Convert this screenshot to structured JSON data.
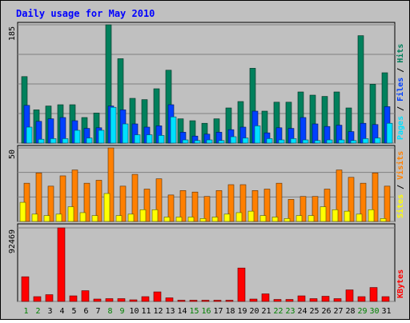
{
  "chart_data": [
    {
      "type": "bar",
      "title": "Daily usage for May 2010",
      "y_max_label": "185",
      "side_label": [
        "Pages",
        "Files",
        "Hits"
      ],
      "categories": [
        "1",
        "2",
        "3",
        "4",
        "5",
        "6",
        "7",
        "8",
        "9",
        "10",
        "11",
        "12",
        "13",
        "14",
        "15",
        "16",
        "17",
        "18",
        "19",
        "20",
        "21",
        "22",
        "23",
        "24",
        "25",
        "26",
        "27",
        "28",
        "29",
        "30",
        "31"
      ],
      "weekend_days": [
        "1",
        "2",
        "8",
        "9",
        "15",
        "16",
        "22",
        "23",
        "29",
        "30"
      ],
      "ylim": [
        0,
        185
      ],
      "series": [
        {
          "name": "Hits",
          "color": "#00805c",
          "values": [
            104,
            52,
            58,
            60,
            60,
            40,
            47,
            185,
            132,
            70,
            68,
            85,
            114,
            38,
            35,
            31,
            38,
            55,
            65,
            117,
            50,
            64,
            64,
            80,
            75,
            73,
            80,
            55,
            168,
            92,
            110
          ]
        },
        {
          "name": "Files",
          "color": "#0040ff",
          "values": [
            59,
            34,
            38,
            40,
            35,
            23,
            24,
            58,
            52,
            30,
            25,
            27,
            60,
            17,
            11,
            14,
            17,
            21,
            25,
            50,
            16,
            24,
            23,
            40,
            30,
            26,
            28,
            18,
            31,
            29,
            57
          ]
        },
        {
          "name": "Pages",
          "color": "#00e0ff",
          "values": [
            25,
            6,
            7,
            7,
            20,
            8,
            20,
            56,
            30,
            13,
            13,
            12,
            41,
            5,
            4,
            5,
            4,
            10,
            8,
            27,
            7,
            5,
            7,
            5,
            4,
            5,
            5,
            4,
            7,
            8,
            31
          ]
        }
      ]
    },
    {
      "type": "bar",
      "y_max_label": "50",
      "side_label": [
        "Sites",
        "Visits"
      ],
      "ylim": [
        0,
        50
      ],
      "series": [
        {
          "name": "Visits",
          "color": "#ff8000",
          "values": [
            26,
            33,
            24,
            31,
            35,
            26,
            28,
            50,
            24,
            32,
            22,
            29,
            18,
            21,
            20,
            17,
            21,
            25,
            25,
            21,
            22,
            26,
            15,
            17,
            17,
            22,
            35,
            30,
            26,
            33,
            24
          ]
        },
        {
          "name": "Sites",
          "color": "#ffff00",
          "values": [
            13,
            5,
            4,
            5,
            10,
            6,
            4,
            19,
            4,
            5,
            8,
            8,
            3,
            3,
            3,
            2,
            3,
            5,
            6,
            7,
            4,
            3,
            2,
            4,
            4,
            10,
            8,
            7,
            5,
            8,
            2
          ]
        }
      ]
    },
    {
      "type": "bar",
      "y_max_label": "92469",
      "side_label": [
        "KBytes"
      ],
      "ylim": [
        0,
        92469
      ],
      "series": [
        {
          "name": "KBytes",
          "color": "#ff0000",
          "values": [
            31000,
            6000,
            8500,
            92469,
            7000,
            13500,
            3000,
            3500,
            3500,
            2000,
            6000,
            12000,
            4500,
            1500,
            1500,
            1500,
            1500,
            1500,
            42000,
            3000,
            9500,
            2500,
            2500,
            7000,
            3500,
            6500,
            3500,
            14500,
            6000,
            17500,
            6000
          ]
        }
      ]
    }
  ]
}
